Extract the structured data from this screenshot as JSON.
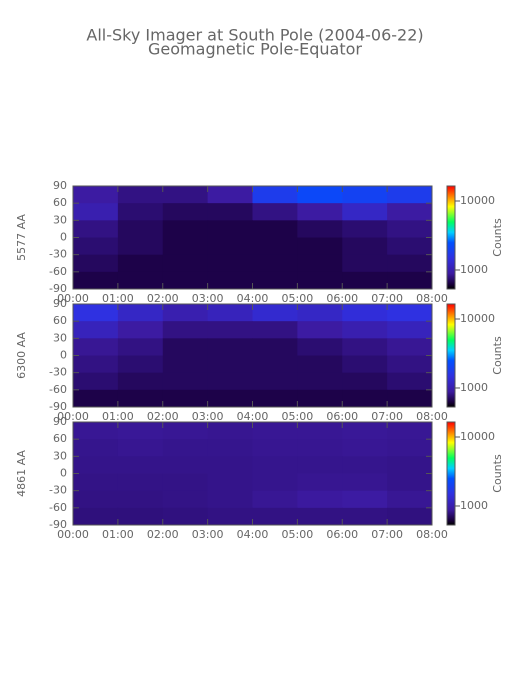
{
  "title": "All-Sky Imager at South Pole (2004-06-22)",
  "subtitle": "Geomagnetic Pole-Equator",
  "chart_data": [
    {
      "type": "heatmap",
      "ylabel": "5577 AA",
      "xlim": [
        0,
        8
      ],
      "ylim": [
        -90,
        90
      ],
      "xticks": [
        {
          "value": 0,
          "label": "00:00"
        },
        {
          "value": 1,
          "label": "01:00"
        },
        {
          "value": 2,
          "label": "02:00"
        },
        {
          "value": 3,
          "label": "03:00"
        },
        {
          "value": 4,
          "label": "04:00"
        },
        {
          "value": 5,
          "label": "05:00"
        },
        {
          "value": 6,
          "label": "06:00"
        },
        {
          "value": 7,
          "label": "07:00"
        },
        {
          "value": 8,
          "label": "08:00"
        }
      ],
      "yticks": [
        90,
        60,
        30,
        0,
        -30,
        -60,
        -90
      ],
      "x": [
        0.5,
        1.5,
        2.5,
        3.5,
        4.5,
        5.5,
        6.5,
        7.5
      ],
      "y": [
        75,
        45,
        15,
        -15,
        -45,
        -75
      ],
      "z": [
        [
          900,
          800,
          800,
          900,
          1800,
          2200,
          2000,
          1800
        ],
        [
          1000,
          750,
          700,
          700,
          800,
          900,
          1200,
          900
        ],
        [
          800,
          700,
          650,
          650,
          650,
          700,
          750,
          800
        ],
        [
          750,
          700,
          650,
          650,
          650,
          650,
          700,
          750
        ],
        [
          700,
          650,
          650,
          650,
          650,
          650,
          700,
          700
        ],
        [
          650,
          650,
          650,
          650,
          650,
          650,
          650,
          650
        ]
      ],
      "zlim": [
        530,
        16500
      ],
      "zticks": [
        1000,
        10000
      ],
      "zlabel": "Counts"
    },
    {
      "type": "heatmap",
      "ylabel": "6300 AA",
      "xlim": [
        0,
        8
      ],
      "ylim": [
        -90,
        90
      ],
      "xticks": [
        {
          "value": 0,
          "label": "00:00"
        },
        {
          "value": 1,
          "label": "01:00"
        },
        {
          "value": 2,
          "label": "02:00"
        },
        {
          "value": 3,
          "label": "03:00"
        },
        {
          "value": 4,
          "label": "04:00"
        },
        {
          "value": 5,
          "label": "05:00"
        },
        {
          "value": 6,
          "label": "06:00"
        },
        {
          "value": 7,
          "label": "07:00"
        },
        {
          "value": 8,
          "label": "08:00"
        }
      ],
      "yticks": [
        90,
        60,
        30,
        0,
        -30,
        -60,
        -90
      ],
      "x": [
        0.5,
        1.5,
        2.5,
        3.5,
        4.5,
        5.5,
        6.5,
        7.5
      ],
      "y": [
        75,
        45,
        15,
        -15,
        -45,
        -75
      ],
      "z": [
        [
          1500,
          1200,
          1000,
          1100,
          1300,
          1200,
          1400,
          1500
        ],
        [
          1100,
          900,
          800,
          800,
          800,
          900,
          1000,
          1100
        ],
        [
          850,
          800,
          700,
          700,
          700,
          750,
          800,
          850
        ],
        [
          800,
          750,
          700,
          700,
          700,
          700,
          750,
          800
        ],
        [
          750,
          700,
          700,
          700,
          700,
          700,
          700,
          750
        ],
        [
          650,
          650,
          650,
          650,
          650,
          650,
          650,
          650
        ]
      ],
      "zlim": [
        530,
        16500
      ],
      "zticks": [
        1000,
        10000
      ],
      "zlabel": "Counts"
    },
    {
      "type": "heatmap",
      "ylabel": "4861 AA",
      "xlim": [
        0,
        8
      ],
      "ylim": [
        -90,
        90
      ],
      "xticks": [
        {
          "value": 0,
          "label": "00:00"
        },
        {
          "value": 1,
          "label": "01:00"
        },
        {
          "value": 2,
          "label": "02:00"
        },
        {
          "value": 3,
          "label": "03:00"
        },
        {
          "value": 4,
          "label": "04:00"
        },
        {
          "value": 5,
          "label": "05:00"
        },
        {
          "value": 6,
          "label": "06:00"
        },
        {
          "value": 7,
          "label": "07:00"
        },
        {
          "value": 8,
          "label": "08:00"
        }
      ],
      "yticks": [
        90,
        60,
        30,
        0,
        -30,
        -60,
        -90
      ],
      "x": [
        0.5,
        1.5,
        2.5,
        3.5,
        4.5,
        5.5,
        6.5,
        7.5
      ],
      "y": [
        75,
        45,
        15,
        -15,
        -45,
        -75
      ],
      "z": [
        [
          850,
          860,
          850,
          840,
          850,
          850,
          860,
          850
        ],
        [
          830,
          840,
          830,
          830,
          840,
          840,
          850,
          840
        ],
        [
          820,
          820,
          820,
          820,
          830,
          830,
          830,
          820
        ],
        [
          810,
          810,
          810,
          820,
          830,
          840,
          840,
          820
        ],
        [
          800,
          800,
          810,
          820,
          850,
          880,
          900,
          850
        ],
        [
          780,
          780,
          790,
          800,
          800,
          800,
          800,
          790
        ]
      ],
      "zlim": [
        530,
        16500
      ],
      "zticks": [
        1000,
        10000
      ],
      "zlabel": "Counts"
    }
  ]
}
